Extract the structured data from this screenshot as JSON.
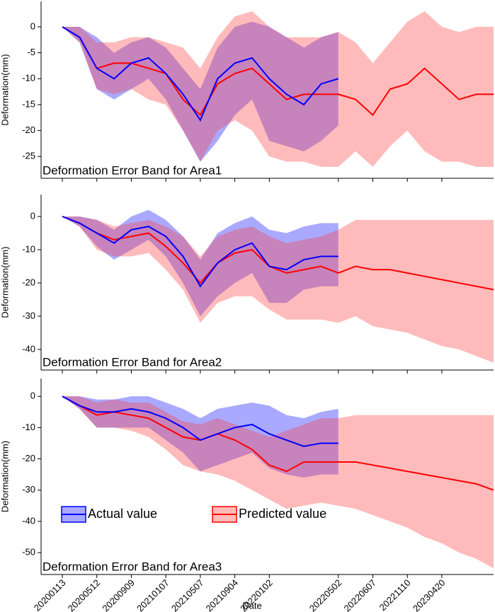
{
  "chart_data": [
    {
      "type": "band-line",
      "title": "Deformation Error Band for Area1",
      "ylabel": "Deformation(mm)",
      "ylim": [
        -29.2,
        4.9
      ],
      "yticks": [
        0,
        -5,
        -10,
        -15,
        -20,
        -25
      ],
      "series": [
        {
          "color": "#0000ff",
          "band_color": "rgba(40,40,255,0.4)",
          "values": [
            0,
            -2,
            -8,
            -10,
            -7,
            -6,
            -9,
            -13,
            -18,
            -10,
            -7,
            -6,
            -10,
            -13,
            -15,
            -11,
            -10,
            null,
            null,
            null,
            null,
            null,
            null,
            null,
            null,
            null
          ],
          "upper": [
            0,
            0,
            -2,
            -5,
            -3,
            -2,
            -4,
            -8,
            -12,
            -4,
            0,
            1,
            0,
            -2,
            -4,
            -2,
            -1,
            null,
            null,
            null,
            null,
            null,
            null,
            null,
            null,
            null
          ],
          "lower": [
            0,
            -3,
            -12,
            -14,
            -12,
            -10,
            -14,
            -20,
            -26,
            -22,
            -17,
            -14,
            -22,
            -23,
            -24,
            -22,
            -19,
            null,
            null,
            null,
            null,
            null,
            null,
            null,
            null,
            null
          ]
        },
        {
          "color": "#ff0000",
          "band_color": "rgba(255,60,60,0.35)",
          "values": [
            0,
            -2,
            -8,
            -7,
            -7,
            -8,
            -9,
            -14,
            -17,
            -11,
            -9,
            -8,
            -11,
            -14,
            -13,
            -13,
            -13,
            -14,
            -17,
            -12,
            -11,
            -8,
            -11,
            -14,
            -13,
            -13
          ],
          "upper": [
            0,
            0,
            -3,
            -3,
            -2,
            -2,
            -3,
            -4,
            -8,
            -2,
            2,
            3,
            0,
            -2,
            -2,
            -2,
            -1,
            -3,
            -7,
            -3,
            1,
            3,
            0,
            -1,
            0,
            0
          ],
          "lower": [
            0,
            -3,
            -12,
            -13,
            -12,
            -14,
            -15,
            -20,
            -26,
            -20,
            -18,
            -20,
            -25,
            -26,
            -26,
            -27,
            -27,
            -24,
            -27,
            -23,
            -20,
            -24,
            -26,
            -26,
            -27,
            -27
          ]
        }
      ]
    },
    {
      "type": "band-line",
      "title": "Deformation Error Band for Area2",
      "ylabel": "Deformation(mm)",
      "ylim": [
        -46.2,
        6.6
      ],
      "yticks": [
        0,
        -10,
        -20,
        -30,
        -40
      ],
      "series": [
        {
          "color": "#0000ff",
          "band_color": "rgba(40,40,255,0.4)",
          "values": [
            0,
            -2,
            -5,
            -8,
            -4,
            -3,
            -6,
            -12,
            -21,
            -14,
            -10,
            -8,
            -15,
            -16,
            -13,
            -12,
            -12,
            null,
            null,
            null,
            null,
            null,
            null,
            null,
            null,
            null
          ],
          "upper": [
            0,
            0,
            -1,
            -4,
            0,
            2,
            -1,
            -6,
            -13,
            -5,
            -2,
            0,
            -4,
            -5,
            -3,
            -2,
            -2,
            null,
            null,
            null,
            null,
            null,
            null,
            null,
            null,
            null
          ],
          "lower": [
            0,
            -3,
            -9,
            -13,
            -10,
            -7,
            -12,
            -20,
            -30,
            -24,
            -20,
            -17,
            -26,
            -26,
            -22,
            -21,
            -21,
            null,
            null,
            null,
            null,
            null,
            null,
            null,
            null,
            null
          ]
        },
        {
          "color": "#ff0000",
          "band_color": "rgba(255,60,60,0.35)",
          "values": [
            0,
            -2,
            -5,
            -7,
            -6,
            -5,
            -9,
            -14,
            -20,
            -14,
            -11,
            -10,
            -15,
            -17,
            -16,
            -15,
            -17,
            -15,
            -16,
            -16,
            -17,
            -18,
            -19,
            -20,
            -21,
            -22
          ],
          "upper": [
            0,
            0,
            -1,
            -3,
            -2,
            -1,
            -3,
            -6,
            -12,
            -6,
            -4,
            -3,
            -6,
            -8,
            -7,
            -6,
            -4,
            -1,
            -1,
            -1,
            -1,
            -1,
            -1,
            -1,
            -1,
            -1
          ],
          "lower": [
            0,
            -3,
            -10,
            -12,
            -12,
            -11,
            -16,
            -22,
            -32,
            -26,
            -24,
            -24,
            -28,
            -31,
            -31,
            -31,
            -32,
            -30,
            -33,
            -34,
            -35,
            -37,
            -39,
            -40,
            -42,
            -44
          ]
        }
      ]
    },
    {
      "type": "band-line",
      "title": "Deformation Error Band for Area3",
      "ylabel": "Deformation(mm)",
      "xlabel": "Date",
      "categories": [
        "20200113",
        null,
        "20200512",
        null,
        "20200909",
        null,
        "20210107",
        null,
        "20210507",
        null,
        "20210904",
        null,
        "20220102",
        null,
        null,
        null,
        "20220502",
        null,
        "20220607",
        null,
        "20221110",
        null,
        "20230420",
        null,
        null,
        null
      ],
      "ylim": [
        -57,
        5.7
      ],
      "yticks": [
        0,
        -10,
        -20,
        -30,
        -40,
        -50
      ],
      "legend": "lower left",
      "series": [
        {
          "name": "Actual value",
          "color": "#0000ff",
          "band_color": "rgba(40,40,255,0.4)",
          "values": [
            0,
            -3,
            -5,
            -5,
            -4,
            -5,
            -7,
            -10,
            -14,
            -12,
            -10,
            -9,
            -12,
            -14,
            -16,
            -15,
            -15,
            null,
            null,
            null,
            null,
            null,
            null,
            null,
            null,
            null
          ],
          "upper": [
            0,
            0,
            -1,
            -1,
            0,
            0,
            -2,
            -4,
            -7,
            -4,
            -3,
            -2,
            -3,
            -6,
            -7,
            -5,
            -4,
            null,
            null,
            null,
            null,
            null,
            null,
            null,
            null,
            null
          ],
          "lower": [
            0,
            -4,
            -10,
            -10,
            -10,
            -10,
            -14,
            -18,
            -24,
            -22,
            -20,
            -18,
            -23,
            -25,
            -26,
            -25,
            -25,
            null,
            null,
            null,
            null,
            null,
            null,
            null,
            null,
            null
          ]
        },
        {
          "name": "Predicted value",
          "color": "#ff0000",
          "band_color": "rgba(255,60,60,0.35)",
          "values": [
            0,
            -3,
            -6,
            -5,
            -6,
            -7,
            -10,
            -13,
            -14,
            -12,
            -14,
            -17,
            -22,
            -24,
            -21,
            -21,
            -21,
            -21,
            -22,
            -23,
            -24,
            -25,
            -26,
            -27,
            -28,
            -30
          ],
          "upper": [
            0,
            0,
            -2,
            -1,
            -2,
            -2,
            -5,
            -8,
            -9,
            -7,
            -9,
            -11,
            -13,
            -11,
            -9,
            -7,
            -7,
            -6,
            -6,
            -6,
            -6,
            -6,
            -6,
            -6,
            -6,
            -6
          ],
          "lower": [
            0,
            -4,
            -10,
            -10,
            -11,
            -13,
            -17,
            -22,
            -24,
            -25,
            -27,
            -30,
            -33,
            -36,
            -35,
            -34,
            -35,
            -36,
            -38,
            -40,
            -42,
            -45,
            -47,
            -50,
            -52,
            -55
          ]
        }
      ]
    }
  ]
}
